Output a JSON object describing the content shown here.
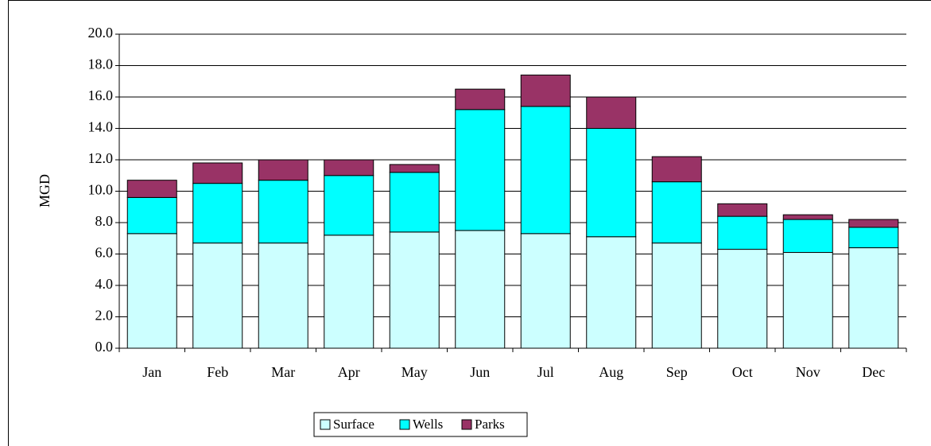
{
  "chart_data": {
    "type": "stacked-bar",
    "y_label": "MGD",
    "categories": [
      "Jan",
      "Feb",
      "Mar",
      "Apr",
      "May",
      "Jun",
      "Jul",
      "Aug",
      "Sep",
      "Oct",
      "Nov",
      "Dec"
    ],
    "series": [
      {
        "name": "Surface",
        "color": "#ccffff",
        "values": [
          7.3,
          6.7,
          6.7,
          7.2,
          7.4,
          7.5,
          7.3,
          7.1,
          6.7,
          6.3,
          6.1,
          6.4
        ]
      },
      {
        "name": "Wells",
        "color": "#00ffff",
        "values": [
          2.3,
          3.8,
          4.0,
          3.8,
          3.8,
          7.7,
          8.1,
          6.9,
          3.9,
          2.1,
          2.1,
          1.3
        ]
      },
      {
        "name": "Parks",
        "color": "#993366",
        "values": [
          1.1,
          1.3,
          1.3,
          1.0,
          0.5,
          1.3,
          2.0,
          2.0,
          1.6,
          0.8,
          0.3,
          0.5
        ]
      }
    ],
    "ylim": [
      0,
      20
    ],
    "yticks": [
      {
        "value": 0,
        "label": "0.0"
      },
      {
        "value": 2,
        "label": "2.0"
      },
      {
        "value": 4,
        "label": "4.0"
      },
      {
        "value": 6,
        "label": "6.0"
      },
      {
        "value": 8,
        "label": "8.0"
      },
      {
        "value": 10,
        "label": "10.0"
      },
      {
        "value": 12,
        "label": "12.0"
      },
      {
        "value": 14,
        "label": "14.0"
      },
      {
        "value": 16,
        "label": "16.0"
      },
      {
        "value": 18,
        "label": "18.0"
      },
      {
        "value": 20,
        "label": "20.0"
      }
    ],
    "grid": true,
    "legend": "bottom"
  }
}
